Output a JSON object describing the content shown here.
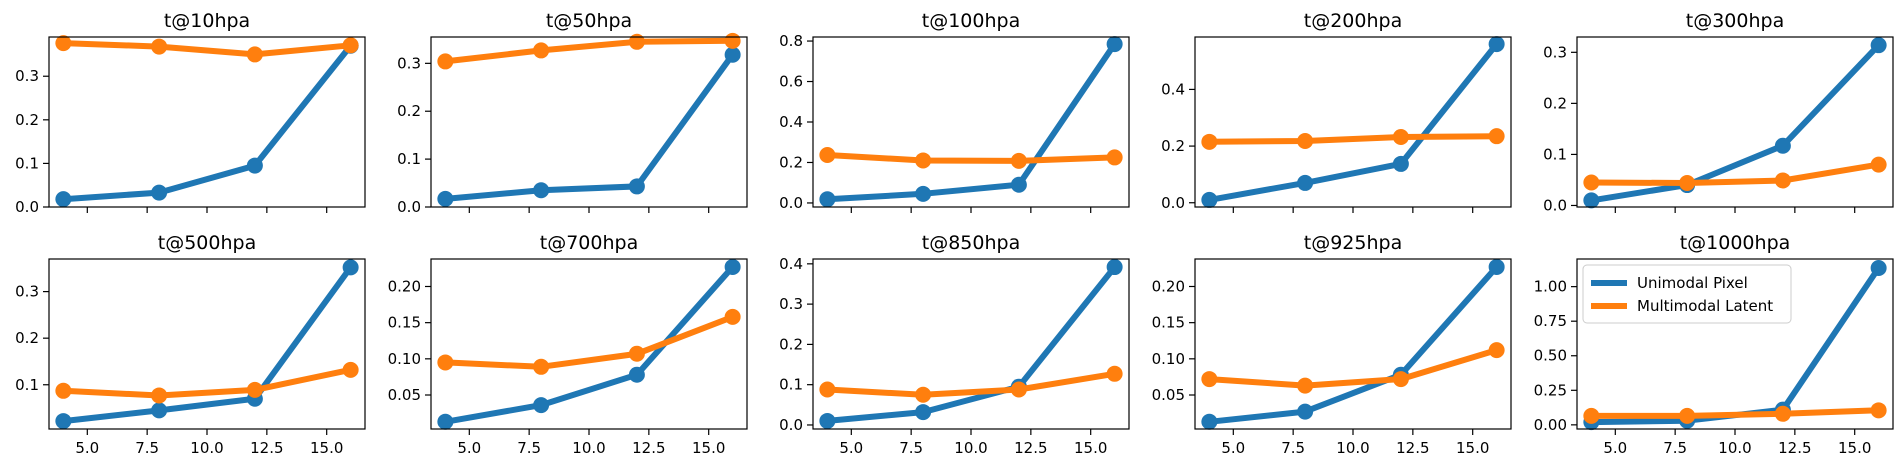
{
  "colors": {
    "unimodal": "#1f77b4",
    "multimodal": "#ff7f0e"
  },
  "legend": {
    "placement": "upper-left of last panel",
    "items": [
      {
        "label": "Unimodal Pixel",
        "color": "#1f77b4"
      },
      {
        "label": "Multimodal Latent",
        "color": "#ff7f0e"
      }
    ]
  },
  "chart_data": [
    {
      "type": "line",
      "title": "t@10hpa",
      "x": [
        4,
        8,
        12,
        16
      ],
      "xlim": [
        3.4,
        16.6
      ],
      "ylim": [
        0,
        0.39
      ],
      "yticks": [
        0.0,
        0.1,
        0.2,
        0.3
      ],
      "ytick_labels": [
        "0.0",
        "0.1",
        "0.2",
        "0.3"
      ],
      "xticks": [
        5,
        7.5,
        10,
        12.5,
        15
      ],
      "xtick_labels": [],
      "series": [
        {
          "name": "Unimodal Pixel",
          "values": [
            0.018,
            0.033,
            0.095,
            0.37
          ]
        },
        {
          "name": "Multimodal Latent",
          "values": [
            0.376,
            0.368,
            0.35,
            0.371
          ]
        }
      ]
    },
    {
      "type": "line",
      "title": "t@50hpa",
      "x": [
        4,
        8,
        12,
        16
      ],
      "xlim": [
        3.4,
        16.6
      ],
      "ylim": [
        0,
        0.355
      ],
      "yticks": [
        0.0,
        0.1,
        0.2,
        0.3
      ],
      "ytick_labels": [
        "0.0",
        "0.1",
        "0.2",
        "0.3"
      ],
      "xticks": [
        5,
        7.5,
        10,
        12.5,
        15
      ],
      "xtick_labels": [],
      "series": [
        {
          "name": "Unimodal Pixel",
          "values": [
            0.017,
            0.035,
            0.043,
            0.318
          ]
        },
        {
          "name": "Multimodal Latent",
          "values": [
            0.304,
            0.327,
            0.345,
            0.347
          ]
        }
      ]
    },
    {
      "type": "line",
      "title": "t@100hpa",
      "x": [
        4,
        8,
        12,
        16
      ],
      "xlim": [
        3.4,
        16.6
      ],
      "ylim": [
        -0.02,
        0.82
      ],
      "yticks": [
        0.0,
        0.2,
        0.4,
        0.6,
        0.8
      ],
      "ytick_labels": [
        "0.0",
        "0.2",
        "0.4",
        "0.6",
        "0.8"
      ],
      "xticks": [
        5,
        7.5,
        10,
        12.5,
        15
      ],
      "xtick_labels": [],
      "series": [
        {
          "name": "Unimodal Pixel",
          "values": [
            0.018,
            0.045,
            0.09,
            0.785
          ]
        },
        {
          "name": "Multimodal Latent",
          "values": [
            0.237,
            0.21,
            0.208,
            0.225
          ]
        }
      ]
    },
    {
      "type": "line",
      "title": "t@200hpa",
      "x": [
        4,
        8,
        12,
        16
      ],
      "xlim": [
        3.4,
        16.6
      ],
      "ylim": [
        -0.015,
        0.585
      ],
      "yticks": [
        0.0,
        0.2,
        0.4
      ],
      "ytick_labels": [
        "0.0",
        "0.2",
        "0.4"
      ],
      "xticks": [
        5,
        7.5,
        10,
        12.5,
        15
      ],
      "xtick_labels": [],
      "series": [
        {
          "name": "Unimodal Pixel",
          "values": [
            0.01,
            0.07,
            0.137,
            0.56
          ]
        },
        {
          "name": "Multimodal Latent",
          "values": [
            0.215,
            0.218,
            0.232,
            0.235
          ]
        }
      ]
    },
    {
      "type": "line",
      "title": "t@300hpa",
      "x": [
        4,
        8,
        12,
        16
      ],
      "xlim": [
        3.4,
        16.6
      ],
      "ylim": [
        -0.003,
        0.33
      ],
      "yticks": [
        0.0,
        0.1,
        0.2,
        0.3
      ],
      "ytick_labels": [
        "0.0",
        "0.1",
        "0.2",
        "0.3"
      ],
      "xticks": [
        5,
        7.5,
        10,
        12.5,
        15
      ],
      "xtick_labels": [],
      "series": [
        {
          "name": "Unimodal Pixel",
          "values": [
            0.01,
            0.04,
            0.117,
            0.314
          ]
        },
        {
          "name": "Multimodal Latent",
          "values": [
            0.045,
            0.044,
            0.049,
            0.08
          ]
        }
      ]
    },
    {
      "type": "line",
      "title": "t@500hpa",
      "x": [
        4,
        8,
        12,
        16
      ],
      "xlim": [
        3.4,
        16.6
      ],
      "ylim": [
        0.005,
        0.37
      ],
      "yticks": [
        0.1,
        0.2,
        0.3
      ],
      "ytick_labels": [
        "0.1",
        "0.2",
        "0.3"
      ],
      "xticks": [
        5,
        7.5,
        10,
        12.5,
        15
      ],
      "xtick_labels": [
        "5.0",
        "7.5",
        "10.0",
        "12.5",
        "15.0"
      ],
      "series": [
        {
          "name": "Unimodal Pixel",
          "values": [
            0.022,
            0.045,
            0.07,
            0.352
          ]
        },
        {
          "name": "Multimodal Latent",
          "values": [
            0.087,
            0.077,
            0.089,
            0.132
          ]
        }
      ]
    },
    {
      "type": "line",
      "title": "t@700hpa",
      "x": [
        4,
        8,
        12,
        16
      ],
      "xlim": [
        3.4,
        16.6
      ],
      "ylim": [
        0.003,
        0.238
      ],
      "yticks": [
        0.05,
        0.1,
        0.15,
        0.2
      ],
      "ytick_labels": [
        "0.05",
        "0.10",
        "0.15",
        "0.20"
      ],
      "xticks": [
        5,
        7.5,
        10,
        12.5,
        15
      ],
      "xtick_labels": [
        "5.0",
        "7.5",
        "10.0",
        "12.5",
        "15.0"
      ],
      "series": [
        {
          "name": "Unimodal Pixel",
          "values": [
            0.013,
            0.036,
            0.078,
            0.227
          ]
        },
        {
          "name": "Multimodal Latent",
          "values": [
            0.095,
            0.089,
            0.107,
            0.158
          ]
        }
      ]
    },
    {
      "type": "line",
      "title": "t@850hpa",
      "x": [
        4,
        8,
        12,
        16
      ],
      "xlim": [
        3.4,
        16.6
      ],
      "ylim": [
        -0.01,
        0.412
      ],
      "yticks": [
        0.0,
        0.1,
        0.2,
        0.3,
        0.4
      ],
      "ytick_labels": [
        "0.0",
        "0.1",
        "0.2",
        "0.3",
        "0.4"
      ],
      "xticks": [
        5,
        7.5,
        10,
        12.5,
        15
      ],
      "xtick_labels": [
        "5.0",
        "7.5",
        "10.0",
        "12.5",
        "15.0"
      ],
      "series": [
        {
          "name": "Unimodal Pixel",
          "values": [
            0.01,
            0.032,
            0.095,
            0.392
          ]
        },
        {
          "name": "Multimodal Latent",
          "values": [
            0.088,
            0.075,
            0.088,
            0.127
          ]
        }
      ]
    },
    {
      "type": "line",
      "title": "t@925hpa",
      "x": [
        4,
        8,
        12,
        16
      ],
      "xlim": [
        3.4,
        16.6
      ],
      "ylim": [
        0.003,
        0.238
      ],
      "yticks": [
        0.05,
        0.1,
        0.15,
        0.2
      ],
      "ytick_labels": [
        "0.05",
        "0.10",
        "0.15",
        "0.20"
      ],
      "xticks": [
        5,
        7.5,
        10,
        12.5,
        15
      ],
      "xtick_labels": [
        "5.0",
        "7.5",
        "10.0",
        "12.5",
        "15.0"
      ],
      "series": [
        {
          "name": "Unimodal Pixel",
          "values": [
            0.013,
            0.027,
            0.078,
            0.227
          ]
        },
        {
          "name": "Multimodal Latent",
          "values": [
            0.072,
            0.063,
            0.072,
            0.112
          ]
        }
      ]
    },
    {
      "type": "line",
      "title": "t@1000hpa",
      "x": [
        4,
        8,
        12,
        16
      ],
      "xlim": [
        3.4,
        16.6
      ],
      "ylim": [
        -0.03,
        1.2
      ],
      "yticks": [
        0.0,
        0.25,
        0.5,
        0.75,
        1.0
      ],
      "ytick_labels": [
        "0.00",
        "0.25",
        "0.50",
        "0.75",
        "1.00"
      ],
      "xticks": [
        5,
        7.5,
        10,
        12.5,
        15
      ],
      "xtick_labels": [
        "5.0",
        "7.5",
        "10.0",
        "12.5",
        "15.0"
      ],
      "has_legend": true,
      "series": [
        {
          "name": "Unimodal Pixel",
          "values": [
            0.02,
            0.03,
            0.11,
            1.135
          ]
        },
        {
          "name": "Multimodal Latent",
          "values": [
            0.065,
            0.065,
            0.08,
            0.105
          ]
        }
      ]
    }
  ]
}
